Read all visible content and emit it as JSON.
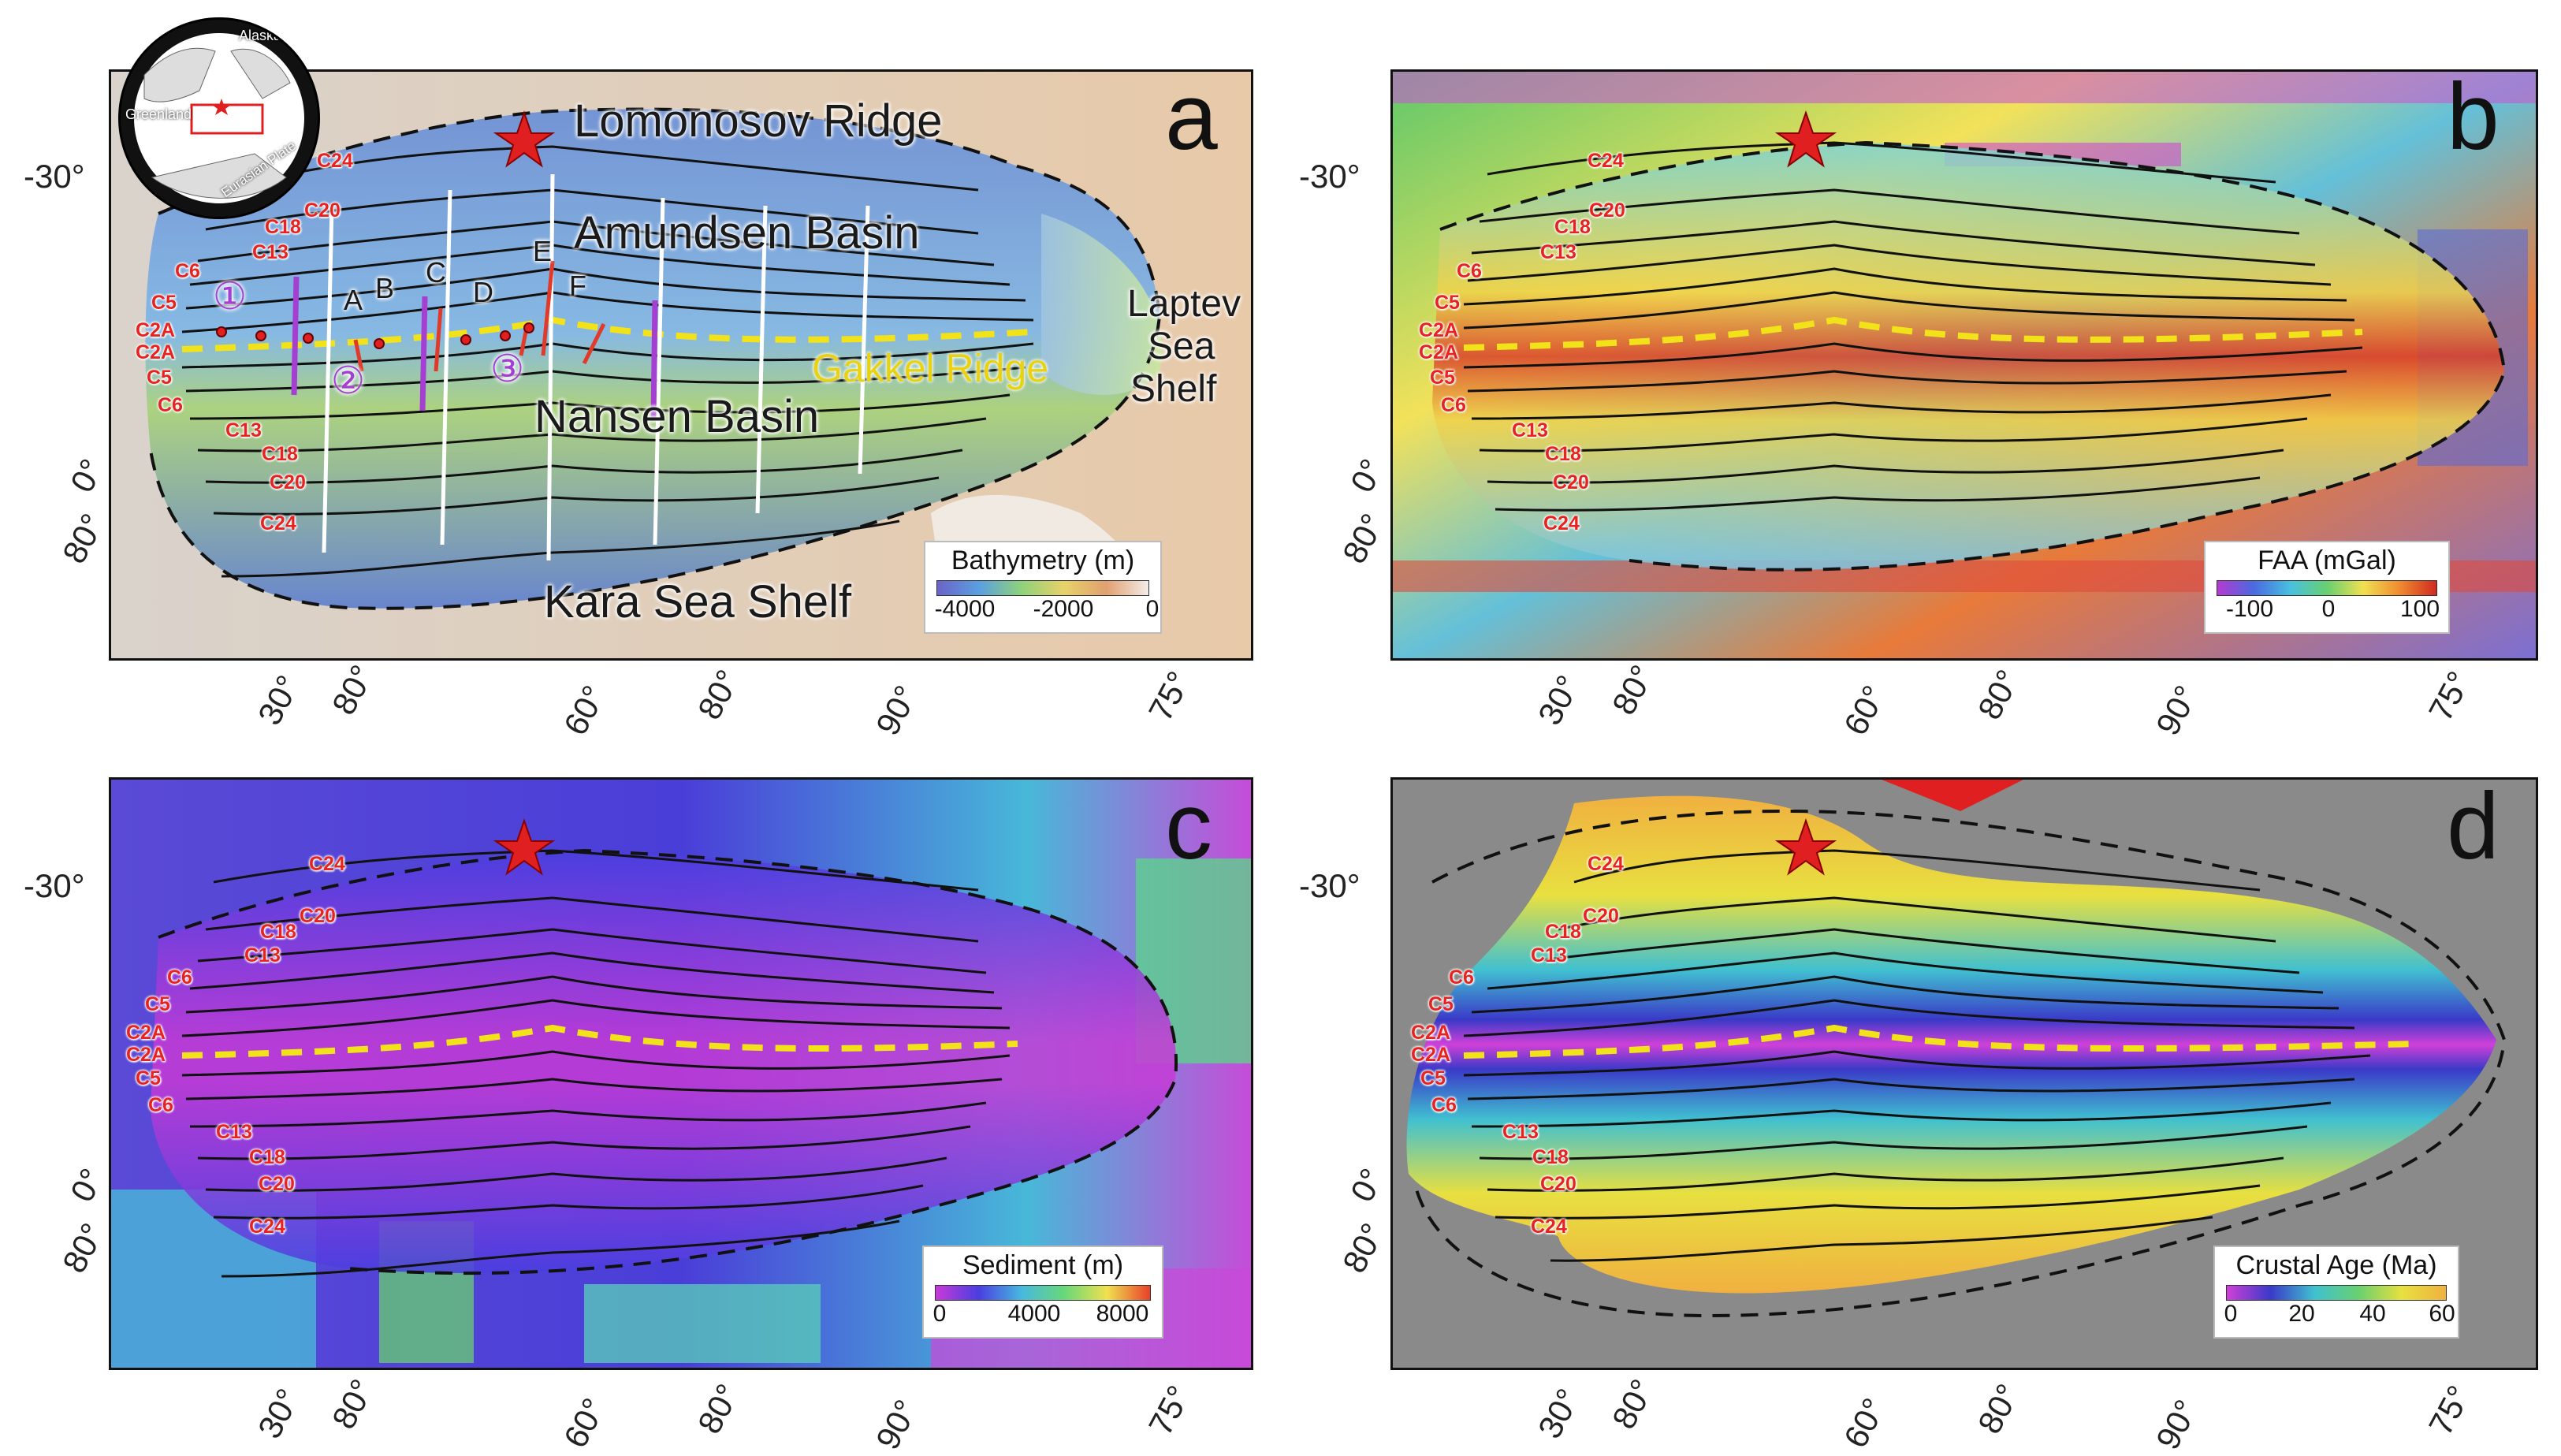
{
  "panels": {
    "a": {
      "letter": "a",
      "labels": {
        "ridge": "Lomonosov Ridge",
        "amundsen": "Amundsen Basin",
        "gakkel": "Gakkel Ridge",
        "laptev1": "Laptev",
        "laptev2": "Sea",
        "laptev3": "Shelf",
        "nansen": "Nansen Basin",
        "kara": "Kara Sea Shelf"
      },
      "profiles": [
        "A",
        "B",
        "C",
        "D",
        "E",
        "F"
      ],
      "circled": [
        "①",
        "②",
        "③"
      ],
      "inset": {
        "alaska": "Alaska",
        "greenland": "Greenland",
        "plate": "Eurasian Plate"
      },
      "scale": {
        "title": "Bathymetry (m)",
        "ticks": [
          "-4000",
          "-2000",
          "0"
        ]
      }
    },
    "b": {
      "letter": "b",
      "scale": {
        "title": "FAA (mGal)",
        "ticks": [
          "-100",
          "0",
          "100"
        ]
      }
    },
    "c": {
      "letter": "c",
      "scale": {
        "title": "Sediment (m)",
        "ticks": [
          "0",
          "4000",
          "8000"
        ]
      }
    },
    "d": {
      "letter": "d",
      "scale": {
        "title": "Crustal Age (Ma)",
        "ticks": [
          "0",
          "20",
          "40",
          "60"
        ]
      }
    }
  },
  "chrons": {
    "top": [
      "C24",
      "C20",
      "C18",
      "C13",
      "C6",
      "C5",
      "C2A"
    ],
    "bottom": [
      "C2A",
      "C5",
      "C6",
      "C13",
      "C18",
      "C20",
      "C24"
    ]
  },
  "coords": {
    "lat_left": "-30°",
    "zero": "0°",
    "eighty_left": "80°",
    "bottom": [
      "30°",
      "80°",
      "60°",
      "80°",
      "90°",
      "75°"
    ]
  },
  "colors": {
    "star": "#e02020",
    "ridge_axis": "#f2e21a",
    "chron_text": "#e8231f",
    "lines": "#111111"
  }
}
